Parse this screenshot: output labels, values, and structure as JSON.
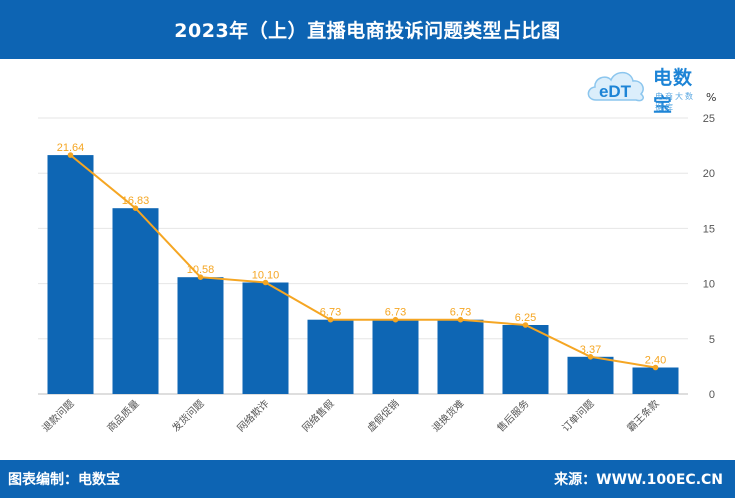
{
  "header": {
    "title": "2023年（上）直播电商投诉问题类型占比图"
  },
  "logo": {
    "brand_text": "电数宝",
    "sub_text": "电商大数据库",
    "mark_text": "eDT"
  },
  "footer": {
    "left_text": "图表编制：电数宝",
    "right_text": "来源：WWW.100EC.CN"
  },
  "colors": {
    "bar": "#0e66b4",
    "line": "#f5a623",
    "header_bg": "#0d64b3"
  },
  "chart_data": {
    "type": "bar",
    "unit": "%",
    "categories": [
      "退款问题",
      "商品质量",
      "发货问题",
      "网络欺诈",
      "网络售假",
      "虚假促销",
      "退换货难",
      "售后服务",
      "订单问题",
      "霸王条款"
    ],
    "series": [
      {
        "type": "bar",
        "values": [
          21.64,
          16.83,
          10.58,
          10.1,
          6.73,
          6.73,
          6.73,
          6.25,
          3.37,
          2.4
        ]
      },
      {
        "type": "line",
        "values": [
          21.64,
          16.83,
          10.58,
          10.1,
          6.73,
          6.73,
          6.73,
          6.25,
          3.37,
          2.4
        ]
      }
    ],
    "data_labels": [
      "21.64",
      "16.83",
      "10.58",
      "10.10",
      "6.73",
      "6.73",
      "6.73",
      "6.25",
      "3.37",
      "2.40"
    ],
    "ylim": [
      0,
      25
    ],
    "yticks": [
      "0",
      "5",
      "10",
      "15",
      "20",
      "25"
    ],
    "y_axis_side": "right",
    "grid": true,
    "legend": "none"
  }
}
